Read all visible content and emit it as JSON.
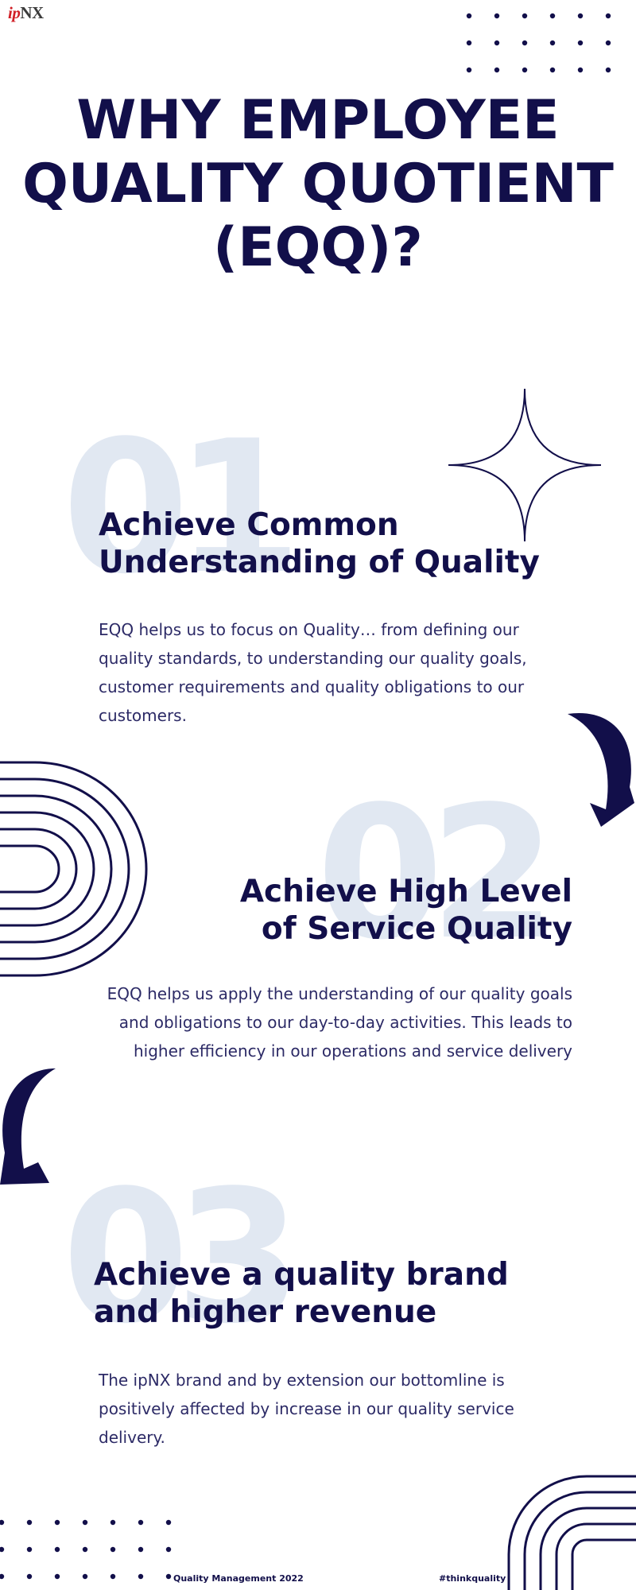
{
  "logo": {
    "prefix": "ip",
    "suffix": "NX"
  },
  "title": "WHY EMPLOYEE QUALITY QUOTIENT (EQQ)?",
  "sections": [
    {
      "number": "01",
      "heading": "Achieve Common\nUnderstanding of Quality",
      "body": "EQQ helps us to focus on Quality… from defining our quality standards, to understanding our quality goals, customer requirements and quality obligations to our customers."
    },
    {
      "number": "02",
      "heading": "Achieve High Level\nof  Service Quality",
      "body": "EQQ helps us apply the understanding of our quality goals and obligations to our day-to-day activities. This leads to higher efficiency in our operations and service delivery"
    },
    {
      "number": "03",
      "heading": "Achieve a quality brand\nand higher revenue",
      "body": "The ipNX brand and by extension our bottomline is positively affected by increase in our quality service delivery."
    }
  ],
  "footer": {
    "left": "Quality Management 2022",
    "right": "#thinkquality"
  },
  "colors": {
    "navy": "#120f4a",
    "light_number": "#e1e8f2",
    "logo_red": "#d11f26"
  },
  "decorations": [
    "dot-grid",
    "four-point-star",
    "curved-arrow",
    "concentric-arches"
  ]
}
